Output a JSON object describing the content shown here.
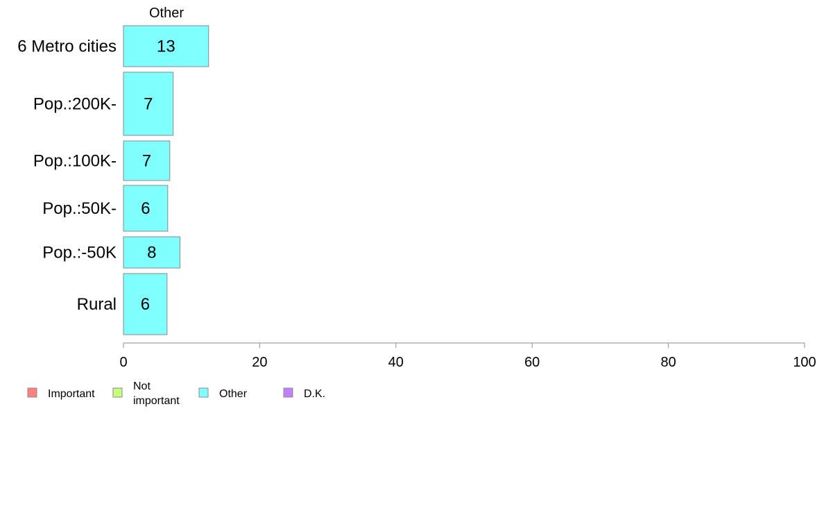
{
  "chart_data": {
    "type": "bar",
    "orientation": "horizontal",
    "stacked": true,
    "header": "Other",
    "categories": [
      "6 Metro cities",
      "Pop.:200K-",
      "Pop.:100K-",
      "Pop.:50K-",
      "Pop.:-50K",
      "Rural"
    ],
    "series": [
      {
        "name": "Important",
        "color": "#ff8080",
        "values": [
          0,
          0,
          0,
          0,
          0,
          0
        ]
      },
      {
        "name": "Not important",
        "color": "#c6ff80",
        "values": [
          0,
          0,
          0,
          0,
          0,
          0
        ]
      },
      {
        "name": "Other",
        "color": "#80ffff",
        "values": [
          12.5,
          7.3,
          6.8,
          6.5,
          8.3,
          6.4
        ]
      },
      {
        "name": "D.K.",
        "color": "#c080ff",
        "values": [
          0,
          0,
          0,
          0,
          0,
          0
        ]
      }
    ],
    "data_labels": [
      "13",
      "7",
      "7",
      "6",
      "8",
      "6"
    ],
    "xlim": [
      0,
      100
    ],
    "xticks": [
      0,
      20,
      40,
      60,
      80,
      100
    ],
    "xtick_labels": [
      "0",
      "20",
      "40",
      "60",
      "80",
      "100"
    ],
    "grid": false,
    "legend_position": "bottom-left",
    "legend": [
      {
        "name": "Important",
        "label_lines": [
          "Important"
        ],
        "color": "#ff8080"
      },
      {
        "name": "Not important",
        "label_lines": [
          "Not",
          "important"
        ],
        "color": "#c6ff80"
      },
      {
        "name": "Other",
        "label_lines": [
          "Other"
        ],
        "color": "#80ffff"
      },
      {
        "name": "D.K.",
        "label_lines": [
          "D.K."
        ],
        "color": "#c080ff"
      }
    ]
  }
}
